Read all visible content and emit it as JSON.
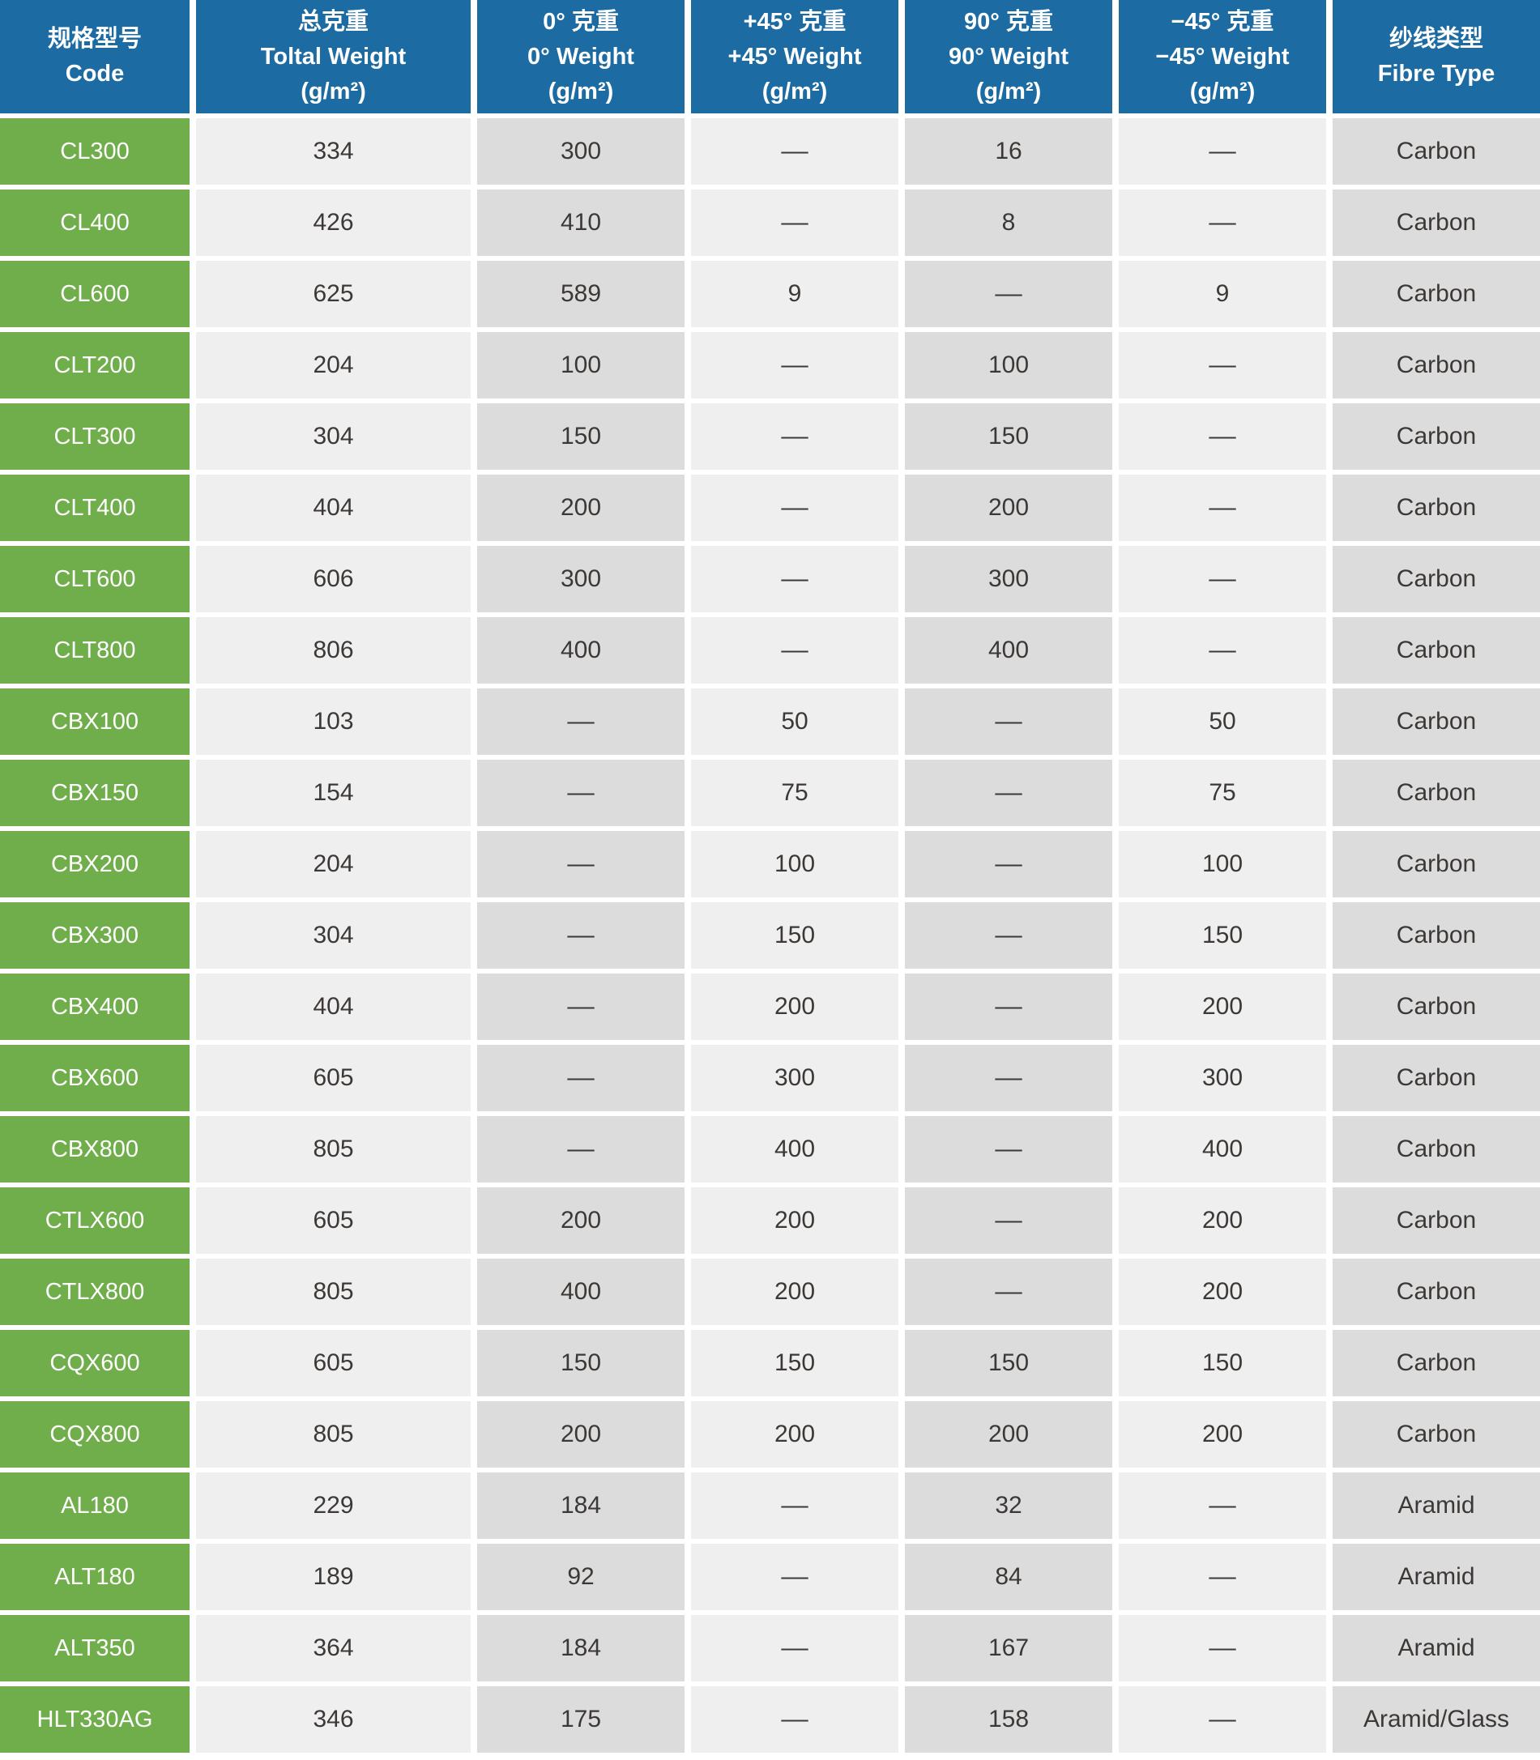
{
  "colors": {
    "header_bg": "#1d6ba3",
    "code_column_bg": "#70ad4b",
    "cell_light_bg": "#efefef",
    "cell_dark_bg": "#dcdcdc",
    "header_text": "#ffffff",
    "data_text": "#3c3836"
  },
  "chart_data": {
    "type": "table",
    "empty_marker": "––",
    "columns": [
      {
        "key": "code",
        "zh": "规格型号",
        "en": "Code",
        "unit": ""
      },
      {
        "key": "total",
        "zh": "总克重",
        "en": "Toltal Weight",
        "unit": "(g/m²)"
      },
      {
        "key": "w0",
        "zh": "0° 克重",
        "en": "0°  Weight",
        "unit": "(g/m²)"
      },
      {
        "key": "p45",
        "zh": "+45° 克重",
        "en": "+45°  Weight",
        "unit": "(g/m²)"
      },
      {
        "key": "w90",
        "zh": "90° 克重",
        "en": "90°  Weight",
        "unit": "(g/m²)"
      },
      {
        "key": "m45",
        "zh": "−45° 克重",
        "en": "−45°  Weight",
        "unit": "(g/m²)"
      },
      {
        "key": "fibre",
        "zh": "纱线类型",
        "en": "Fibre Type",
        "unit": ""
      }
    ],
    "rows": [
      {
        "code": "CL300",
        "total": "334",
        "w0": "300",
        "p45": "––",
        "w90": "16",
        "m45": "––",
        "fibre": "Carbon"
      },
      {
        "code": "CL400",
        "total": "426",
        "w0": "410",
        "p45": "––",
        "w90": "8",
        "m45": "––",
        "fibre": "Carbon"
      },
      {
        "code": "CL600",
        "total": "625",
        "w0": "589",
        "p45": "9",
        "w90": "––",
        "m45": "9",
        "fibre": "Carbon"
      },
      {
        "code": "CLT200",
        "total": "204",
        "w0": "100",
        "p45": "––",
        "w90": "100",
        "m45": "––",
        "fibre": "Carbon"
      },
      {
        "code": "CLT300",
        "total": "304",
        "w0": "150",
        "p45": "––",
        "w90": "150",
        "m45": "––",
        "fibre": "Carbon"
      },
      {
        "code": "CLT400",
        "total": "404",
        "w0": "200",
        "p45": "––",
        "w90": "200",
        "m45": "––",
        "fibre": "Carbon"
      },
      {
        "code": "CLT600",
        "total": "606",
        "w0": "300",
        "p45": "––",
        "w90": "300",
        "m45": "––",
        "fibre": "Carbon"
      },
      {
        "code": "CLT800",
        "total": "806",
        "w0": "400",
        "p45": "––",
        "w90": "400",
        "m45": "––",
        "fibre": "Carbon"
      },
      {
        "code": "CBX100",
        "total": "103",
        "w0": "––",
        "p45": "50",
        "w90": "––",
        "m45": "50",
        "fibre": "Carbon"
      },
      {
        "code": "CBX150",
        "total": "154",
        "w0": "––",
        "p45": "75",
        "w90": "––",
        "m45": "75",
        "fibre": "Carbon"
      },
      {
        "code": "CBX200",
        "total": "204",
        "w0": "––",
        "p45": "100",
        "w90": "––",
        "m45": "100",
        "fibre": "Carbon"
      },
      {
        "code": "CBX300",
        "total": "304",
        "w0": "––",
        "p45": "150",
        "w90": "––",
        "m45": "150",
        "fibre": "Carbon"
      },
      {
        "code": "CBX400",
        "total": "404",
        "w0": "––",
        "p45": "200",
        "w90": "––",
        "m45": "200",
        "fibre": "Carbon"
      },
      {
        "code": "CBX600",
        "total": "605",
        "w0": "––",
        "p45": "300",
        "w90": "––",
        "m45": "300",
        "fibre": "Carbon"
      },
      {
        "code": "CBX800",
        "total": "805",
        "w0": "––",
        "p45": "400",
        "w90": "––",
        "m45": "400",
        "fibre": "Carbon"
      },
      {
        "code": "CTLX600",
        "total": "605",
        "w0": "200",
        "p45": "200",
        "w90": "––",
        "m45": "200",
        "fibre": "Carbon"
      },
      {
        "code": "CTLX800",
        "total": "805",
        "w0": "400",
        "p45": "200",
        "w90": "––",
        "m45": "200",
        "fibre": "Carbon"
      },
      {
        "code": "CQX600",
        "total": "605",
        "w0": "150",
        "p45": "150",
        "w90": "150",
        "m45": "150",
        "fibre": "Carbon"
      },
      {
        "code": "CQX800",
        "total": "805",
        "w0": "200",
        "p45": "200",
        "w90": "200",
        "m45": "200",
        "fibre": "Carbon"
      },
      {
        "code": "AL180",
        "total": "229",
        "w0": "184",
        "p45": "––",
        "w90": "32",
        "m45": "––",
        "fibre": "Aramid"
      },
      {
        "code": "ALT180",
        "total": "189",
        "w0": "92",
        "p45": "––",
        "w90": "84",
        "m45": "––",
        "fibre": "Aramid"
      },
      {
        "code": "ALT350",
        "total": "364",
        "w0": "184",
        "p45": "––",
        "w90": "167",
        "m45": "––",
        "fibre": "Aramid"
      },
      {
        "code": "HLT330AG",
        "total": "346",
        "w0": "175",
        "p45": "––",
        "w90": "158",
        "m45": "––",
        "fibre": "Aramid/Glass"
      }
    ]
  }
}
